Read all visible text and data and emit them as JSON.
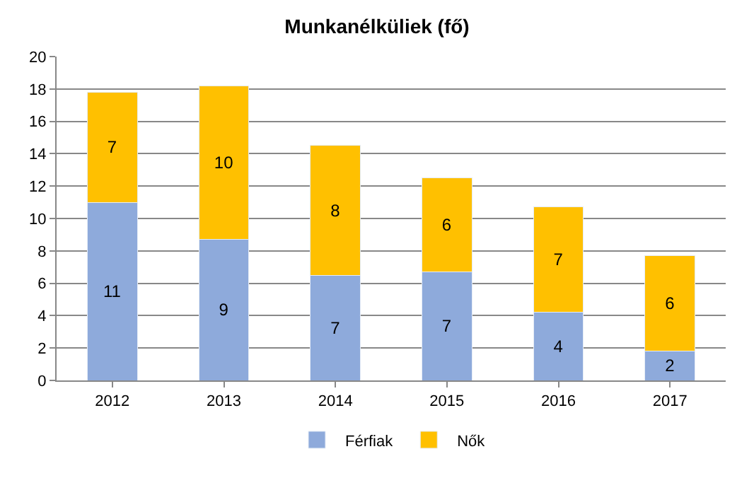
{
  "chart_data": {
    "type": "bar",
    "title": "Munkanélküliek (fő)",
    "stacked": true,
    "categories": [
      "2012",
      "2013",
      "2014",
      "2015",
      "2016",
      "2017"
    ],
    "series": [
      {
        "name": "Férfiak",
        "color": "#8eaadb",
        "values": [
          11.0,
          8.7,
          6.5,
          6.7,
          4.2,
          1.8
        ],
        "value_labels": [
          "11",
          "9",
          "7",
          "7",
          "4",
          "2"
        ]
      },
      {
        "name": "Nők",
        "color": "#ffc000",
        "values": [
          6.8,
          9.5,
          8.0,
          5.8,
          6.5,
          5.9
        ],
        "value_labels": [
          "7",
          "10",
          "8",
          "6",
          "7",
          "6"
        ]
      }
    ],
    "ylim": [
      0,
      20
    ],
    "yticks": [
      0,
      2,
      4,
      6,
      8,
      10,
      12,
      14,
      16,
      18,
      20
    ],
    "grid": "y",
    "legend": "bottom"
  }
}
